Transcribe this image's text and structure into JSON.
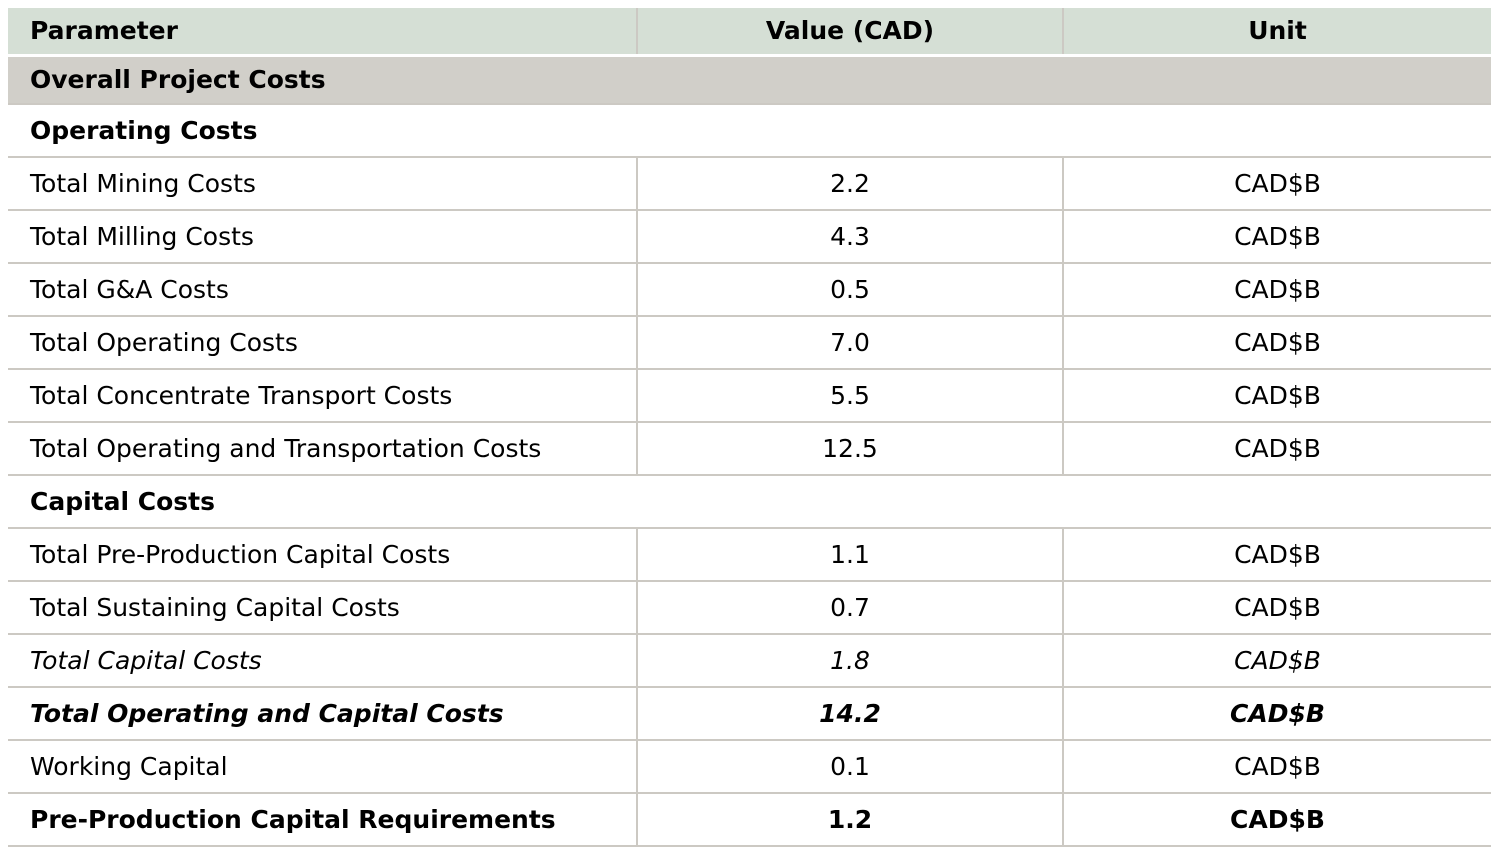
{
  "colors": {
    "header_bg": "#d5dfd5",
    "section_bg": "#d1cfc9",
    "border": "#ccc9c3",
    "gap": "#ffffff",
    "text": "#000000"
  },
  "table": {
    "columns": [
      {
        "label": "Parameter"
      },
      {
        "label": "Value (CAD)"
      },
      {
        "label": "Unit"
      }
    ],
    "rows": [
      {
        "type": "section-gray",
        "label": "Overall Project Costs"
      },
      {
        "type": "section",
        "label": "Operating Costs"
      },
      {
        "type": "data",
        "style": "normal",
        "parameter": "Total Mining Costs",
        "value": "2.2",
        "unit": "CAD$B"
      },
      {
        "type": "data",
        "style": "normal",
        "parameter": "Total Milling Costs",
        "value": "4.3",
        "unit": "CAD$B"
      },
      {
        "type": "data",
        "style": "normal",
        "parameter": "Total G&A Costs",
        "value": "0.5",
        "unit": "CAD$B"
      },
      {
        "type": "data",
        "style": "normal",
        "parameter": "Total Operating Costs",
        "value": "7.0",
        "unit": "CAD$B"
      },
      {
        "type": "data",
        "style": "normal",
        "parameter": "Total Concentrate Transport Costs",
        "value": "5.5",
        "unit": "CAD$B"
      },
      {
        "type": "data",
        "style": "normal",
        "parameter": "Total Operating and Transportation Costs",
        "value": "12.5",
        "unit": "CAD$B"
      },
      {
        "type": "section",
        "label": "Capital Costs"
      },
      {
        "type": "data",
        "style": "normal",
        "parameter": "Total Pre-Production Capital Costs",
        "value": "1.1",
        "unit": "CAD$B"
      },
      {
        "type": "data",
        "style": "normal",
        "parameter": "Total Sustaining Capital Costs",
        "value": "0.7",
        "unit": "CAD$B"
      },
      {
        "type": "data",
        "style": "italic",
        "parameter": "Total Capital Costs",
        "value": "1.8",
        "unit": "CAD$B"
      },
      {
        "type": "data",
        "style": "bold-italic",
        "parameter": "Total Operating and Capital Costs",
        "value": "14.2",
        "unit": "CAD$B"
      },
      {
        "type": "data",
        "style": "normal",
        "parameter": "Working Capital",
        "value": "0.1",
        "unit": "CAD$B"
      },
      {
        "type": "data",
        "style": "bold",
        "parameter": "Pre-Production Capital Requirements",
        "value": "1.2",
        "unit": "CAD$B"
      }
    ]
  }
}
